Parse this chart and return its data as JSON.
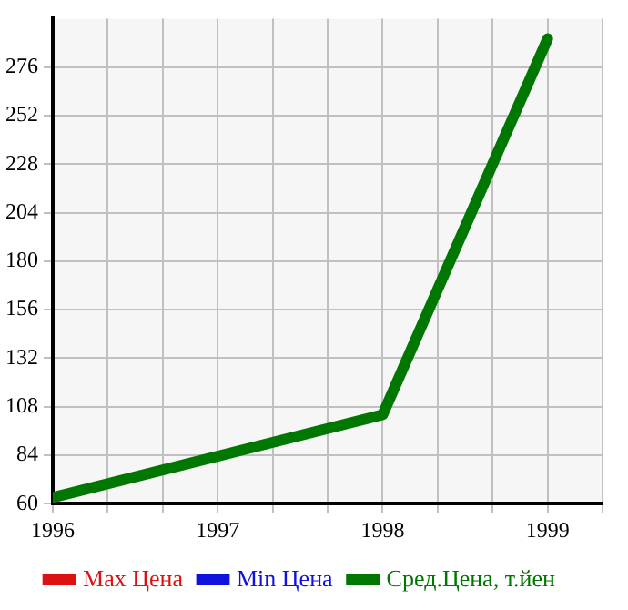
{
  "chart_data": {
    "type": "line",
    "x": [
      1996,
      1998,
      1999
    ],
    "series": [
      {
        "name": "Max Цена",
        "color": "#dd1111",
        "values": [
          null,
          null,
          null
        ]
      },
      {
        "name": "Min Цена",
        "color": "#1111dd",
        "values": [
          null,
          null,
          null
        ]
      },
      {
        "name": "Сред.Цена, т.йен",
        "color": "#007700",
        "values": [
          63,
          104,
          290
        ]
      }
    ],
    "xlim": [
      1996,
      1999.333
    ],
    "xticks": [
      1996,
      {
        "value": 1996.333,
        "label": null
      },
      {
        "value": 1996.667,
        "label": null
      },
      1997,
      {
        "value": 1997.333,
        "label": null
      },
      {
        "value": 1997.667,
        "label": null
      },
      1998,
      {
        "value": 1998.333,
        "label": null
      },
      {
        "value": 1998.667,
        "label": null
      },
      1999,
      {
        "value": 1999.333,
        "label": null
      }
    ],
    "ylim": [
      60,
      300
    ],
    "yticks": [
      60,
      84,
      108,
      132,
      156,
      180,
      204,
      228,
      252,
      276
    ],
    "grid": true,
    "legend": "bottom",
    "marker": "none",
    "line_style": "solid"
  }
}
